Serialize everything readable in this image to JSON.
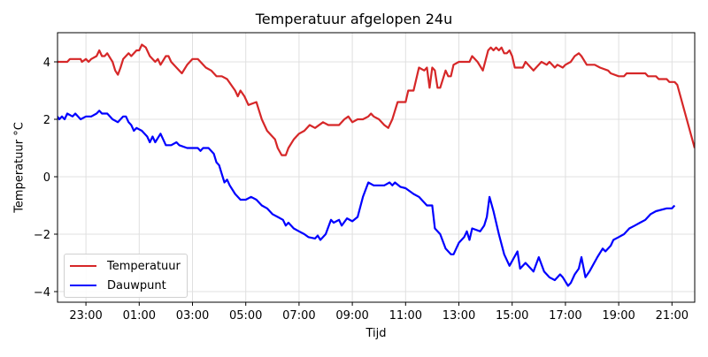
{
  "chart_data": {
    "type": "line",
    "title": "Temperatuur afgelopen 24u",
    "xlabel": "Tijd",
    "ylabel": "Temperatuur °C",
    "x_tick_labels": [
      "23:00",
      "01:00",
      "03:00",
      "05:00",
      "07:00",
      "09:00",
      "11:00",
      "13:00",
      "15:00",
      "17:00",
      "19:00",
      "21:00"
    ],
    "y_tick_labels": [
      "−4",
      "−2",
      "0",
      "2",
      "4"
    ],
    "y_ticks": [
      -4,
      -2,
      0,
      2,
      4
    ],
    "ylim": [
      -4.3,
      5.0
    ],
    "xlim_hours_from_22h": [
      -0.07,
      23.85
    ],
    "grid": true,
    "legend_position": "lower left",
    "x_unit": "hours since 22:00",
    "series": [
      {
        "name": "Temperatuur",
        "color": "#d62728",
        "points": [
          [
            -0.07,
            4.0
          ],
          [
            0.3,
            4.0
          ],
          [
            0.4,
            4.1
          ],
          [
            0.8,
            4.1
          ],
          [
            0.85,
            4.0
          ],
          [
            1.0,
            4.1
          ],
          [
            1.1,
            4.0
          ],
          [
            1.2,
            4.1
          ],
          [
            1.4,
            4.2
          ],
          [
            1.5,
            4.4
          ],
          [
            1.6,
            4.2
          ],
          [
            1.7,
            4.2
          ],
          [
            1.8,
            4.3
          ],
          [
            2.0,
            4.0
          ],
          [
            2.1,
            3.7
          ],
          [
            2.2,
            3.55
          ],
          [
            2.3,
            3.8
          ],
          [
            2.4,
            4.1
          ],
          [
            2.6,
            4.3
          ],
          [
            2.7,
            4.2
          ],
          [
            2.9,
            4.4
          ],
          [
            3.0,
            4.4
          ],
          [
            3.1,
            4.6
          ],
          [
            3.25,
            4.5
          ],
          [
            3.4,
            4.2
          ],
          [
            3.6,
            4.0
          ],
          [
            3.7,
            4.1
          ],
          [
            3.8,
            3.9
          ],
          [
            4.0,
            4.2
          ],
          [
            4.1,
            4.2
          ],
          [
            4.2,
            4.0
          ],
          [
            4.3,
            3.9
          ],
          [
            4.4,
            3.8
          ],
          [
            4.6,
            3.6
          ],
          [
            4.8,
            3.9
          ],
          [
            5.0,
            4.1
          ],
          [
            5.2,
            4.1
          ],
          [
            5.5,
            3.8
          ],
          [
            5.7,
            3.7
          ],
          [
            5.9,
            3.5
          ],
          [
            6.1,
            3.5
          ],
          [
            6.3,
            3.4
          ],
          [
            6.6,
            3.0
          ],
          [
            6.7,
            2.8
          ],
          [
            6.8,
            3.0
          ],
          [
            6.95,
            2.8
          ],
          [
            7.1,
            2.5
          ],
          [
            7.4,
            2.6
          ],
          [
            7.6,
            2.0
          ],
          [
            7.8,
            1.6
          ],
          [
            8.1,
            1.3
          ],
          [
            8.2,
            1.0
          ],
          [
            8.35,
            0.75
          ],
          [
            8.5,
            0.75
          ],
          [
            8.6,
            1.0
          ],
          [
            8.8,
            1.3
          ],
          [
            9.0,
            1.5
          ],
          [
            9.2,
            1.6
          ],
          [
            9.4,
            1.8
          ],
          [
            9.6,
            1.7
          ],
          [
            9.9,
            1.9
          ],
          [
            10.1,
            1.8
          ],
          [
            10.5,
            1.8
          ],
          [
            10.7,
            2.0
          ],
          [
            10.85,
            2.1
          ],
          [
            11.0,
            1.9
          ],
          [
            11.2,
            2.0
          ],
          [
            11.4,
            2.0
          ],
          [
            11.6,
            2.1
          ],
          [
            11.7,
            2.2
          ],
          [
            11.8,
            2.1
          ],
          [
            12.0,
            2.0
          ],
          [
            12.2,
            1.8
          ],
          [
            12.35,
            1.7
          ],
          [
            12.5,
            2.0
          ],
          [
            12.7,
            2.6
          ],
          [
            13.0,
            2.6
          ],
          [
            13.1,
            3.0
          ],
          [
            13.3,
            3.0
          ],
          [
            13.5,
            3.8
          ],
          [
            13.7,
            3.7
          ],
          [
            13.8,
            3.8
          ],
          [
            13.9,
            3.1
          ],
          [
            14.0,
            3.8
          ],
          [
            14.1,
            3.7
          ],
          [
            14.2,
            3.1
          ],
          [
            14.3,
            3.1
          ],
          [
            14.5,
            3.7
          ],
          [
            14.6,
            3.5
          ],
          [
            14.7,
            3.5
          ],
          [
            14.8,
            3.9
          ],
          [
            15.0,
            4.0
          ],
          [
            15.4,
            4.0
          ],
          [
            15.5,
            4.2
          ],
          [
            15.7,
            4.0
          ],
          [
            15.9,
            3.7
          ],
          [
            16.1,
            4.4
          ],
          [
            16.2,
            4.5
          ],
          [
            16.3,
            4.4
          ],
          [
            16.4,
            4.5
          ],
          [
            16.5,
            4.4
          ],
          [
            16.6,
            4.5
          ],
          [
            16.7,
            4.3
          ],
          [
            16.8,
            4.3
          ],
          [
            16.9,
            4.4
          ],
          [
            17.0,
            4.2
          ],
          [
            17.1,
            3.8
          ],
          [
            17.4,
            3.8
          ],
          [
            17.5,
            4.0
          ],
          [
            17.8,
            3.7
          ],
          [
            18.0,
            3.9
          ],
          [
            18.1,
            4.0
          ],
          [
            18.3,
            3.9
          ],
          [
            18.4,
            4.0
          ],
          [
            18.5,
            3.9
          ],
          [
            18.6,
            3.8
          ],
          [
            18.7,
            3.9
          ],
          [
            18.9,
            3.8
          ],
          [
            19.0,
            3.9
          ],
          [
            19.2,
            4.0
          ],
          [
            19.35,
            4.2
          ],
          [
            19.5,
            4.3
          ],
          [
            19.6,
            4.2
          ],
          [
            19.8,
            3.9
          ],
          [
            20.1,
            3.9
          ],
          [
            20.3,
            3.8
          ],
          [
            20.6,
            3.7
          ],
          [
            20.7,
            3.6
          ],
          [
            21.0,
            3.5
          ],
          [
            21.2,
            3.5
          ],
          [
            21.3,
            3.6
          ],
          [
            22.0,
            3.6
          ],
          [
            22.1,
            3.5
          ],
          [
            22.4,
            3.5
          ],
          [
            22.5,
            3.4
          ],
          [
            22.8,
            3.4
          ],
          [
            22.9,
            3.3
          ],
          [
            23.1,
            3.3
          ],
          [
            23.2,
            3.2
          ],
          [
            23.85,
            1.0
          ]
        ]
      },
      {
        "name": "Dauwpunt",
        "color": "#0000ff",
        "points": [
          [
            -0.07,
            2.1
          ],
          [
            0.0,
            2.0
          ],
          [
            0.1,
            2.1
          ],
          [
            0.2,
            2.0
          ],
          [
            0.3,
            2.2
          ],
          [
            0.5,
            2.1
          ],
          [
            0.6,
            2.2
          ],
          [
            0.8,
            2.0
          ],
          [
            1.0,
            2.1
          ],
          [
            1.2,
            2.1
          ],
          [
            1.4,
            2.2
          ],
          [
            1.5,
            2.3
          ],
          [
            1.6,
            2.2
          ],
          [
            1.8,
            2.2
          ],
          [
            2.0,
            2.0
          ],
          [
            2.2,
            1.9
          ],
          [
            2.4,
            2.1
          ],
          [
            2.5,
            2.1
          ],
          [
            2.6,
            1.9
          ],
          [
            2.7,
            1.8
          ],
          [
            2.8,
            1.6
          ],
          [
            2.9,
            1.7
          ],
          [
            3.1,
            1.6
          ],
          [
            3.3,
            1.4
          ],
          [
            3.4,
            1.2
          ],
          [
            3.5,
            1.4
          ],
          [
            3.6,
            1.2
          ],
          [
            3.8,
            1.5
          ],
          [
            3.9,
            1.3
          ],
          [
            4.0,
            1.1
          ],
          [
            4.2,
            1.1
          ],
          [
            4.4,
            1.2
          ],
          [
            4.5,
            1.1
          ],
          [
            4.8,
            1.0
          ],
          [
            5.2,
            1.0
          ],
          [
            5.3,
            0.9
          ],
          [
            5.4,
            1.0
          ],
          [
            5.6,
            1.0
          ],
          [
            5.8,
            0.8
          ],
          [
            5.9,
            0.5
          ],
          [
            6.0,
            0.4
          ],
          [
            6.1,
            0.1
          ],
          [
            6.2,
            -0.2
          ],
          [
            6.3,
            -0.1
          ],
          [
            6.4,
            -0.3
          ],
          [
            6.6,
            -0.6
          ],
          [
            6.8,
            -0.8
          ],
          [
            7.0,
            -0.8
          ],
          [
            7.2,
            -0.7
          ],
          [
            7.4,
            -0.8
          ],
          [
            7.6,
            -1.0
          ],
          [
            7.8,
            -1.1
          ],
          [
            8.0,
            -1.3
          ],
          [
            8.2,
            -1.4
          ],
          [
            8.4,
            -1.5
          ],
          [
            8.5,
            -1.7
          ],
          [
            8.6,
            -1.6
          ],
          [
            8.8,
            -1.8
          ],
          [
            9.0,
            -1.9
          ],
          [
            9.2,
            -2.0
          ],
          [
            9.35,
            -2.1
          ],
          [
            9.6,
            -2.15
          ],
          [
            9.7,
            -2.05
          ],
          [
            9.8,
            -2.2
          ],
          [
            10.0,
            -2.0
          ],
          [
            10.2,
            -1.5
          ],
          [
            10.3,
            -1.6
          ],
          [
            10.5,
            -1.5
          ],
          [
            10.6,
            -1.7
          ],
          [
            10.8,
            -1.45
          ],
          [
            11.0,
            -1.55
          ],
          [
            11.2,
            -1.4
          ],
          [
            11.4,
            -0.7
          ],
          [
            11.6,
            -0.2
          ],
          [
            11.8,
            -0.3
          ],
          [
            12.2,
            -0.3
          ],
          [
            12.4,
            -0.2
          ],
          [
            12.5,
            -0.3
          ],
          [
            12.6,
            -0.2
          ],
          [
            12.8,
            -0.35
          ],
          [
            13.0,
            -0.4
          ],
          [
            13.3,
            -0.6
          ],
          [
            13.5,
            -0.7
          ],
          [
            13.8,
            -1.0
          ],
          [
            14.0,
            -1.0
          ],
          [
            14.1,
            -1.8
          ],
          [
            14.3,
            -2.0
          ],
          [
            14.5,
            -2.5
          ],
          [
            14.7,
            -2.7
          ],
          [
            14.8,
            -2.7
          ],
          [
            15.0,
            -2.3
          ],
          [
            15.2,
            -2.1
          ],
          [
            15.3,
            -1.9
          ],
          [
            15.4,
            -2.2
          ],
          [
            15.5,
            -1.8
          ],
          [
            15.8,
            -1.9
          ],
          [
            15.95,
            -1.7
          ],
          [
            16.05,
            -1.4
          ],
          [
            16.15,
            -0.7
          ],
          [
            16.3,
            -1.2
          ],
          [
            16.5,
            -2.0
          ],
          [
            16.7,
            -2.7
          ],
          [
            16.9,
            -3.1
          ],
          [
            17.2,
            -2.6
          ],
          [
            17.3,
            -3.2
          ],
          [
            17.5,
            -3.0
          ],
          [
            17.8,
            -3.3
          ],
          [
            18.0,
            -2.8
          ],
          [
            18.2,
            -3.3
          ],
          [
            18.4,
            -3.5
          ],
          [
            18.6,
            -3.6
          ],
          [
            18.8,
            -3.4
          ],
          [
            18.9,
            -3.5
          ],
          [
            19.1,
            -3.8
          ],
          [
            19.2,
            -3.7
          ],
          [
            19.35,
            -3.4
          ],
          [
            19.5,
            -3.2
          ],
          [
            19.6,
            -2.8
          ],
          [
            19.75,
            -3.5
          ],
          [
            19.9,
            -3.3
          ],
          [
            20.2,
            -2.8
          ],
          [
            20.4,
            -2.5
          ],
          [
            20.5,
            -2.6
          ],
          [
            20.7,
            -2.4
          ],
          [
            20.8,
            -2.2
          ],
          [
            21.0,
            -2.1
          ],
          [
            21.2,
            -2.0
          ],
          [
            21.4,
            -1.8
          ],
          [
            21.6,
            -1.7
          ],
          [
            21.8,
            -1.6
          ],
          [
            22.0,
            -1.5
          ],
          [
            22.2,
            -1.3
          ],
          [
            22.4,
            -1.2
          ],
          [
            22.8,
            -1.1
          ],
          [
            23.0,
            -1.1
          ],
          [
            23.1,
            -1.0
          ]
        ]
      }
    ]
  },
  "legend": {
    "items": [
      {
        "label": "Temperatuur",
        "color": "#d62728"
      },
      {
        "label": "Dauwpunt",
        "color": "#0000ff"
      }
    ]
  }
}
